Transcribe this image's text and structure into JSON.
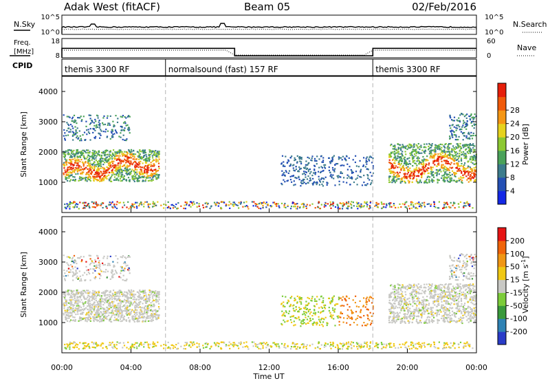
{
  "header": {
    "station": "Adak West (fitACF)",
    "beam": "Beam 05",
    "date": "02/Feb/2016"
  },
  "chart_data": [
    {
      "type": "line",
      "panel": "noise",
      "left_label": "N.Sky",
      "right_label": "N.Search",
      "left_ticks": [
        "10^5",
        "10^0"
      ],
      "right_ticks": [
        "10^5",
        "10^0"
      ]
    },
    {
      "type": "line",
      "panel": "frequency-nave",
      "left_label_top": "Freq.",
      "left_label_bottom": "[MHz]",
      "right_label": "Nave",
      "left_ticks": [
        "18",
        "8"
      ],
      "right_ticks": [
        "60",
        "0"
      ],
      "freq_segments": [
        {
          "start": 0,
          "end": 10,
          "value": 12.9
        },
        {
          "start": 10,
          "end": 18,
          "value": 9.0
        },
        {
          "start": 18,
          "end": 24,
          "value": 12.9
        }
      ]
    },
    {
      "type": "table",
      "panel": "cpid",
      "label": "CPID",
      "segments": [
        {
          "start": 0,
          "end": 6,
          "name": "themis 3300 RF"
        },
        {
          "start": 6,
          "end": 18,
          "name": "normalsound (fast) 157 RF"
        },
        {
          "start": 18,
          "end": 24,
          "name": "themis 3300 RF"
        }
      ]
    },
    {
      "type": "heatmap",
      "panel": "power",
      "ylabel": "Slant Range [km]",
      "ylim": [
        0,
        4500
      ],
      "yticks": [
        1000,
        2000,
        3000,
        4000
      ],
      "colorbar": {
        "label": "Power [dB]",
        "ticks": [
          4,
          8,
          12,
          16,
          20,
          24,
          28
        ],
        "colors": [
          "#1428e6",
          "#2450b4",
          "#3c7c8c",
          "#4aa25a",
          "#8cc832",
          "#e6d21e",
          "#f59614",
          "#f05a0a",
          "#e61e0a"
        ]
      }
    },
    {
      "type": "heatmap",
      "panel": "velocity",
      "ylabel": "Slant Range [km]",
      "ylim": [
        0,
        4500
      ],
      "yticks": [
        1000,
        2000,
        3000,
        4000
      ],
      "colorbar": {
        "label": "Velocity [m s",
        "label_sup": "-1",
        "label_end": "]",
        "ticks": [
          "200",
          "100",
          "50",
          "15",
          "-15",
          "-50",
          "-100",
          "-200"
        ],
        "colors": [
          "#2a3cc8",
          "#2e82b4",
          "#3a9a3c",
          "#7ccc3a",
          "#c8c8c4",
          "#f0c814",
          "#f09614",
          "#f0640a",
          "#e61414"
        ]
      },
      "xlabel": "Time UT",
      "xlim": [
        0,
        24
      ],
      "xticks": [
        "00:00",
        "04:00",
        "08:00",
        "12:00",
        "16:00",
        "20:00",
        "00:00"
      ]
    }
  ]
}
